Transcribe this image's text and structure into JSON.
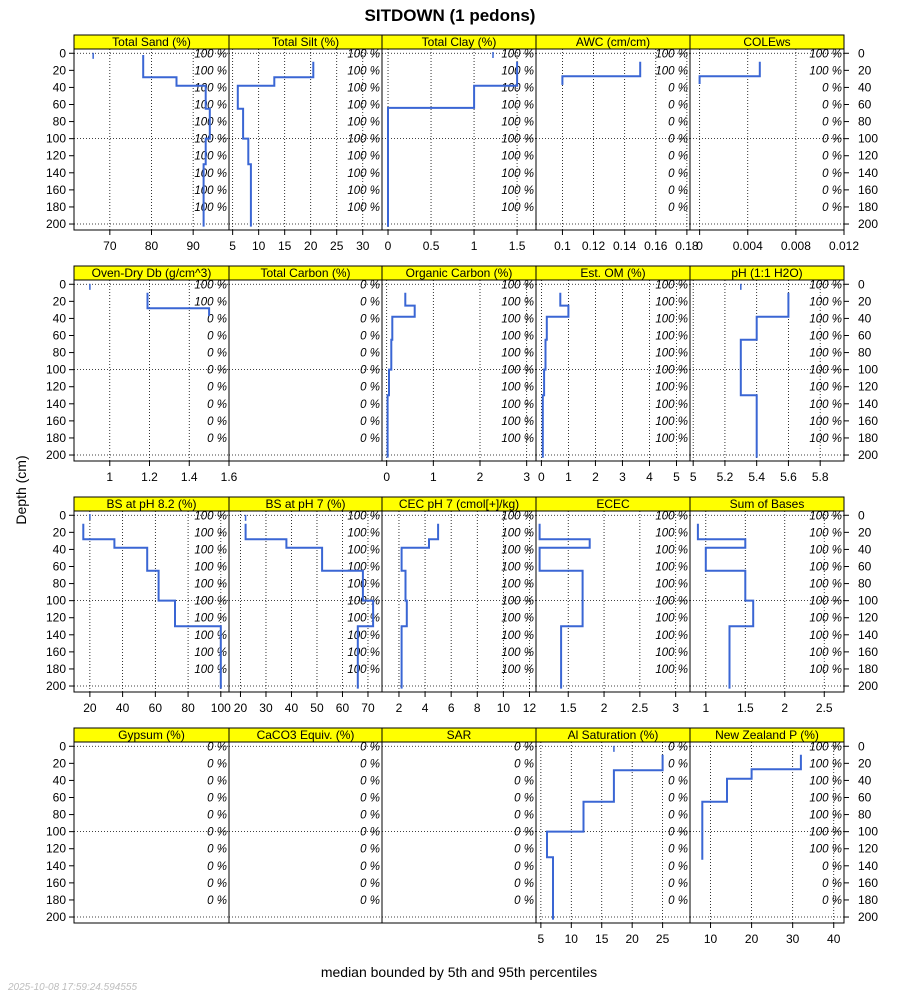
{
  "chart_data": {
    "type": "line",
    "title": "SITDOWN (1 pedons)",
    "ylabel": "Depth (cm)",
    "xlabel": "median bounded by 5th and 95th percentiles",
    "timestamp": "2025-10-08 17:59:24.594555",
    "depth_axis": {
      "ylim": [
        207,
        -5
      ],
      "ticks": [
        0,
        20,
        40,
        60,
        80,
        100,
        120,
        140,
        160,
        180,
        200
      ]
    },
    "percent_depths": [
      0,
      20,
      40,
      60,
      80,
      100,
      120,
      140,
      160,
      180
    ],
    "panels": [
      {
        "name": "Total Sand (%)",
        "xlim": [
          61.4,
          98.6
        ],
        "xticks": [
          70,
          80,
          90
        ],
        "pct": [
          "100 %",
          "100 %",
          "100 %",
          "100 %",
          "100 %",
          "100 %",
          "100 %",
          "100 %",
          "100 %",
          "100 %"
        ],
        "median": [
          [
            78,
            2
          ],
          [
            78,
            28
          ],
          [
            86,
            28
          ],
          [
            86,
            38
          ],
          [
            93,
            38
          ],
          [
            93,
            65
          ],
          [
            94,
            65
          ],
          [
            94,
            100
          ],
          [
            93,
            100
          ],
          [
            93,
            130
          ],
          [
            92.5,
            130
          ],
          [
            92.5,
            203
          ]
        ],
        "p5": [],
        "p95": [],
        "marker": [
          66,
          3
        ]
      },
      {
        "name": "Total Silt (%)",
        "xlim": [
          4.3,
          33.7
        ],
        "xticks": [
          5,
          10,
          15,
          20,
          25,
          30
        ],
        "pct": [
          "100 %",
          "100 %",
          "100 %",
          "100 %",
          "100 %",
          "100 %",
          "100 %",
          "100 %",
          "100 %",
          "100 %"
        ],
        "median": [
          [
            20.5,
            10
          ],
          [
            20.5,
            28
          ],
          [
            13,
            28
          ],
          [
            13,
            38
          ],
          [
            6,
            38
          ],
          [
            6,
            65
          ],
          [
            7,
            65
          ],
          [
            7,
            100
          ],
          [
            8,
            100
          ],
          [
            8,
            130
          ],
          [
            8.5,
            130
          ],
          [
            8.5,
            203
          ]
        ],
        "p5": [],
        "p95": [],
        "marker": []
      },
      {
        "name": "Total Clay (%)",
        "xlim": [
          -0.07,
          1.72
        ],
        "xticks": [
          0.0,
          0.5,
          1.0,
          1.5
        ],
        "pct": [
          "100 %",
          "100 %",
          "100 %",
          "100 %",
          "100 %",
          "100 %",
          "100 %",
          "100 %",
          "100 %",
          "100 %"
        ],
        "median": [
          [
            1.5,
            10
          ],
          [
            1.5,
            38
          ],
          [
            1.0,
            38
          ],
          [
            1.0,
            64
          ],
          [
            0.0,
            64
          ],
          [
            0.0,
            203
          ]
        ],
        "p5": [],
        "p95": [],
        "marker": [
          1.22,
          2
        ]
      },
      {
        "name": "AWC (cm/cm)",
        "xlim": [
          0.083,
          0.182
        ],
        "xticks": [
          0.1,
          0.12,
          0.14,
          0.16,
          0.18
        ],
        "pct": [
          "100 %",
          "100 %",
          "0 %",
          "0 %",
          "0 %",
          "0 %",
          "0 %",
          "0 %",
          "0 %",
          "0 %"
        ],
        "median": [
          [
            0.15,
            10
          ],
          [
            0.15,
            27
          ],
          [
            0.1,
            27
          ],
          [
            0.1,
            37
          ]
        ],
        "p5": [],
        "p95": [],
        "marker": []
      },
      {
        "name": "COLEws",
        "xlim": [
          -0.0008,
          0.012
        ],
        "xticks": [
          0.0,
          0.004,
          0.008,
          0.012
        ],
        "pct": [
          "100 %",
          "100 %",
          "0 %",
          "0 %",
          "0 %",
          "0 %",
          "0 %",
          "0 %",
          "0 %",
          "0 %"
        ],
        "median": [
          [
            0.005,
            10
          ],
          [
            0.005,
            27
          ],
          [
            0.0,
            27
          ],
          [
            0.0,
            36
          ]
        ],
        "p5": [],
        "p95": [],
        "marker": []
      },
      {
        "name": "Oven-Dry Db (g/cm^3)",
        "xlim": [
          0.82,
          1.6
        ],
        "xticks": [
          1.0,
          1.2,
          1.4,
          1.6
        ],
        "pct": [
          "100 %",
          "100 %",
          "0 %",
          "0 %",
          "0 %",
          "0 %",
          "0 %",
          "0 %",
          "0 %",
          "0 %"
        ],
        "median": [
          [
            1.19,
            10
          ],
          [
            1.19,
            28
          ],
          [
            1.5,
            28
          ],
          [
            1.5,
            37
          ]
        ],
        "p5": [],
        "p95": [],
        "marker": [
          0.9,
          3
        ]
      },
      {
        "name": "Total Carbon (%)",
        "xlim": [
          0,
          1
        ],
        "xticks": [],
        "pct": [
          "0 %",
          "0 %",
          "0 %",
          "0 %",
          "0 %",
          "0 %",
          "0 %",
          "0 %",
          "0 %",
          "0 %"
        ],
        "median": [],
        "p5": [],
        "p95": [],
        "marker": []
      },
      {
        "name": "Organic Carbon (%)",
        "xlim": [
          -0.1,
          3.2
        ],
        "xticks": [
          0,
          1,
          2,
          3
        ],
        "pct": [
          "100 %",
          "100 %",
          "100 %",
          "100 %",
          "100 %",
          "100 %",
          "100 %",
          "100 %",
          "100 %",
          "100 %"
        ],
        "median": [
          [
            0.4,
            10
          ],
          [
            0.4,
            25
          ],
          [
            0.6,
            25
          ],
          [
            0.6,
            38
          ],
          [
            0.12,
            38
          ],
          [
            0.12,
            65
          ],
          [
            0.1,
            65
          ],
          [
            0.1,
            100
          ],
          [
            0.05,
            100
          ],
          [
            0.05,
            130
          ],
          [
            0.02,
            130
          ],
          [
            0.02,
            203
          ]
        ],
        "p5": [],
        "p95": [],
        "marker": []
      },
      {
        "name": "Est. OM (%)",
        "xlim": [
          -0.2,
          5.5
        ],
        "xticks": [
          0,
          1,
          2,
          3,
          4,
          5
        ],
        "pct": [
          "100 %",
          "100 %",
          "100 %",
          "100 %",
          "100 %",
          "100 %",
          "100 %",
          "100 %",
          "100 %",
          "100 %"
        ],
        "median": [
          [
            0.7,
            10
          ],
          [
            0.7,
            25
          ],
          [
            1.0,
            25
          ],
          [
            1.0,
            38
          ],
          [
            0.2,
            38
          ],
          [
            0.2,
            65
          ],
          [
            0.15,
            65
          ],
          [
            0.15,
            100
          ],
          [
            0.1,
            100
          ],
          [
            0.1,
            130
          ],
          [
            0.05,
            130
          ],
          [
            0.05,
            203
          ]
        ],
        "p5": [],
        "p95": [],
        "marker": []
      },
      {
        "name": "pH (1:1 H2O)",
        "xlim": [
          4.98,
          5.95
        ],
        "xticks": [
          5.0,
          5.2,
          5.4,
          5.6,
          5.8
        ],
        "pct": [
          "100 %",
          "100 %",
          "100 %",
          "100 %",
          "100 %",
          "100 %",
          "100 %",
          "100 %",
          "100 %",
          "100 %"
        ],
        "median": [
          [
            5.6,
            10
          ],
          [
            5.6,
            38
          ],
          [
            5.4,
            38
          ],
          [
            5.4,
            65
          ],
          [
            5.3,
            65
          ],
          [
            5.3,
            130
          ],
          [
            5.4,
            130
          ],
          [
            5.4,
            203
          ]
        ],
        "p5": [],
        "p95": [],
        "marker": [
          5.3,
          3
        ]
      },
      {
        "name": "BS at pH 8.2 (%)",
        "xlim": [
          10.3,
          105
        ],
        "xticks": [
          20,
          40,
          60,
          80,
          100
        ],
        "pct": [
          "100 %",
          "100 %",
          "100 %",
          "100 %",
          "100 %",
          "100 %",
          "100 %",
          "100 %",
          "100 %",
          "100 %"
        ],
        "median": [
          [
            16,
            10
          ],
          [
            16,
            28
          ],
          [
            35,
            28
          ],
          [
            35,
            38
          ],
          [
            55,
            38
          ],
          [
            55,
            65
          ],
          [
            62,
            65
          ],
          [
            62,
            100
          ],
          [
            72,
            100
          ],
          [
            72,
            130
          ],
          [
            100,
            130
          ],
          [
            100,
            203
          ]
        ],
        "p5": [],
        "p95": [],
        "marker": [
          20,
          2
        ]
      },
      {
        "name": "BS at pH 7 (%)",
        "xlim": [
          15.5,
          75.5
        ],
        "xticks": [
          20,
          30,
          40,
          50,
          60,
          70
        ],
        "pct": [
          "100 %",
          "100 %",
          "100 %",
          "100 %",
          "100 %",
          "100 %",
          "100 %",
          "100 %",
          "100 %",
          "100 %"
        ],
        "median": [
          [
            22,
            10
          ],
          [
            22,
            28
          ],
          [
            38,
            28
          ],
          [
            38,
            38
          ],
          [
            52,
            38
          ],
          [
            52,
            65
          ],
          [
            68,
            65
          ],
          [
            68,
            100
          ],
          [
            72,
            100
          ],
          [
            72,
            130
          ],
          [
            66,
            130
          ],
          [
            66,
            203
          ]
        ],
        "p5": [],
        "p95": [],
        "marker": [
          22,
          3
        ]
      },
      {
        "name": "CEC pH 7 (cmol[+]/kg)",
        "xlim": [
          0.7,
          12.5
        ],
        "xticks": [
          2,
          4,
          6,
          8,
          10,
          12
        ],
        "pct": [
          "100 %",
          "100 %",
          "100 %",
          "100 %",
          "100 %",
          "100 %",
          "100 %",
          "100 %",
          "100 %",
          "100 %"
        ],
        "median": [
          [
            5,
            10
          ],
          [
            5,
            28
          ],
          [
            4.3,
            28
          ],
          [
            4.3,
            38
          ],
          [
            2.2,
            38
          ],
          [
            2.2,
            65
          ],
          [
            2.5,
            65
          ],
          [
            2.5,
            100
          ],
          [
            2.6,
            100
          ],
          [
            2.6,
            130
          ],
          [
            2.2,
            130
          ],
          [
            2.2,
            203
          ]
        ],
        "p5": [],
        "p95": [],
        "marker": []
      },
      {
        "name": "ECEC",
        "xlim": [
          1.05,
          3.2
        ],
        "xticks": [
          1.5,
          2.0,
          2.5,
          3.0
        ],
        "pct": [
          "100 %",
          "100 %",
          "100 %",
          "100 %",
          "100 %",
          "100 %",
          "100 %",
          "100 %",
          "100 %",
          "100 %"
        ],
        "median": [
          [
            1.1,
            10
          ],
          [
            1.1,
            28
          ],
          [
            1.8,
            28
          ],
          [
            1.8,
            38
          ],
          [
            1.1,
            38
          ],
          [
            1.1,
            65
          ],
          [
            1.7,
            65
          ],
          [
            1.7,
            130
          ],
          [
            1.4,
            130
          ],
          [
            1.4,
            203
          ]
        ],
        "p5": [],
        "p95": [],
        "marker": []
      },
      {
        "name": "Sum of Bases",
        "xlim": [
          0.8,
          2.75
        ],
        "xticks": [
          1.0,
          1.5,
          2.0,
          2.5
        ],
        "pct": [
          "100 %",
          "100 %",
          "100 %",
          "100 %",
          "100 %",
          "100 %",
          "100 %",
          "100 %",
          "100 %",
          "100 %"
        ],
        "median": [
          [
            0.9,
            10
          ],
          [
            0.9,
            28
          ],
          [
            1.5,
            28
          ],
          [
            1.5,
            38
          ],
          [
            1.0,
            38
          ],
          [
            1.0,
            65
          ],
          [
            1.5,
            65
          ],
          [
            1.5,
            100
          ],
          [
            1.6,
            100
          ],
          [
            1.6,
            130
          ],
          [
            1.3,
            130
          ],
          [
            1.3,
            203
          ]
        ],
        "p5": [],
        "p95": [],
        "marker": []
      },
      {
        "name": "Gypsum (%)",
        "xlim": [
          0,
          1
        ],
        "xticks": [],
        "pct": [
          "0 %",
          "0 %",
          "0 %",
          "0 %",
          "0 %",
          "0 %",
          "0 %",
          "0 %",
          "0 %",
          "0 %"
        ],
        "median": [],
        "p5": [],
        "p95": [],
        "marker": []
      },
      {
        "name": "CaCO3 Equiv. (%)",
        "xlim": [
          0,
          1
        ],
        "xticks": [],
        "pct": [
          "0 %",
          "0 %",
          "0 %",
          "0 %",
          "0 %",
          "0 %",
          "0 %",
          "0 %",
          "0 %",
          "0 %"
        ],
        "median": [],
        "p5": [],
        "p95": [],
        "marker": []
      },
      {
        "name": "SAR",
        "xlim": [
          0,
          1
        ],
        "xticks": [],
        "pct": [
          "0 %",
          "0 %",
          "0 %",
          "0 %",
          "0 %",
          "0 %",
          "0 %",
          "0 %",
          "0 %",
          "0 %"
        ],
        "median": [],
        "p5": [],
        "p95": [],
        "marker": []
      },
      {
        "name": "Al Saturation (%)",
        "xlim": [
          4.2,
          29.5
        ],
        "xticks": [
          5,
          10,
          15,
          20,
          25
        ],
        "pct": [
          "0 %",
          "0 %",
          "0 %",
          "0 %",
          "0 %",
          "0 %",
          "0 %",
          "0 %",
          "0 %",
          "0 %"
        ],
        "median": [
          [
            25,
            10
          ],
          [
            25,
            28
          ],
          [
            17,
            28
          ],
          [
            17,
            65
          ],
          [
            12,
            65
          ],
          [
            12,
            100
          ],
          [
            6,
            100
          ],
          [
            6,
            130
          ],
          [
            7,
            130
          ],
          [
            7,
            203
          ]
        ],
        "p5": [],
        "p95": [],
        "marker": [
          17,
          3
        ]
      },
      {
        "name": "New Zealand P (%)",
        "xlim": [
          5,
          42.5
        ],
        "xticks": [
          10,
          20,
          30,
          40
        ],
        "pct": [
          "100 %",
          "100 %",
          "100 %",
          "100 %",
          "100 %",
          "100 %",
          "100 %",
          "0 %",
          "0 %",
          "0 %"
        ],
        "median": [
          [
            32,
            10
          ],
          [
            32,
            27
          ],
          [
            20,
            27
          ],
          [
            20,
            38
          ],
          [
            14,
            38
          ],
          [
            14,
            65
          ],
          [
            8,
            65
          ],
          [
            8,
            133
          ]
        ],
        "p5": [],
        "p95": [],
        "marker": []
      }
    ]
  }
}
